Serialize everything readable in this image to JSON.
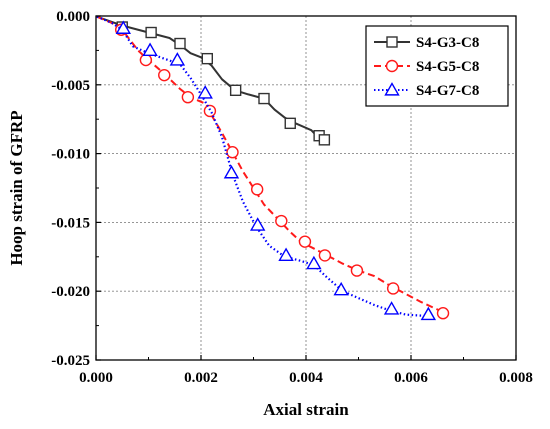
{
  "chart_data": {
    "type": "line",
    "title": "",
    "xlabel": "Axial strain",
    "ylabel": "Hoop strain of GFRP",
    "xlim": [
      0.0,
      0.008
    ],
    "ylim": [
      -0.025,
      0.0
    ],
    "x_ticks": [
      "0.000",
      "0.002",
      "0.004",
      "0.006",
      "0.008"
    ],
    "y_ticks": [
      "0.000",
      "-0.005",
      "-0.010",
      "-0.015",
      "-0.020",
      "-0.025"
    ],
    "grid": true,
    "legend_position": "top-right",
    "series": [
      {
        "name": "S4-G3-C8",
        "color": "#333333",
        "line_style": "solid",
        "marker": "square",
        "line": [
          [
            2e-05,
            -5e-05
          ],
          [
            0.0002,
            -0.0003
          ],
          [
            0.0005,
            -0.0007
          ],
          [
            0.001,
            -0.0012
          ],
          [
            0.0014,
            -0.0016
          ],
          [
            0.0016,
            -0.0021
          ],
          [
            0.0018,
            -0.0027
          ],
          [
            0.002,
            -0.003
          ],
          [
            0.0022,
            -0.0036
          ],
          [
            0.0024,
            -0.0046
          ],
          [
            0.00265,
            -0.0054
          ],
          [
            0.0029,
            -0.0057
          ],
          [
            0.0032,
            -0.006
          ],
          [
            0.0034,
            -0.0068
          ],
          [
            0.0036,
            -0.0074
          ],
          [
            0.0038,
            -0.0078
          ],
          [
            0.0041,
            -0.0083
          ],
          [
            0.0042,
            -0.0087
          ],
          [
            0.00435,
            -0.009
          ]
        ],
        "points": [
          [
            0.0005,
            -0.0008
          ],
          [
            0.00105,
            -0.0012
          ],
          [
            0.0016,
            -0.002
          ],
          [
            0.00212,
            -0.0031
          ],
          [
            0.00266,
            -0.0054
          ],
          [
            0.0032,
            -0.006
          ],
          [
            0.0037,
            -0.0078
          ],
          [
            0.00425,
            -0.0087
          ],
          [
            0.00435,
            -0.009
          ]
        ]
      },
      {
        "name": "S4-G5-C8",
        "color": "#ff1a1a",
        "line_style": "dashed",
        "marker": "circle",
        "line": [
          [
            2e-05,
            -5e-05
          ],
          [
            0.0003,
            -0.0005
          ],
          [
            0.0005,
            -0.001
          ],
          [
            0.0008,
            -0.0025
          ],
          [
            0.001,
            -0.0032
          ],
          [
            0.0013,
            -0.0042
          ],
          [
            0.0016,
            -0.0053
          ],
          [
            0.0018,
            -0.0059
          ],
          [
            0.0021,
            -0.0064
          ],
          [
            0.0022,
            -0.0072
          ],
          [
            0.0024,
            -0.0085
          ],
          [
            0.0026,
            -0.0099
          ],
          [
            0.0028,
            -0.0113
          ],
          [
            0.003,
            -0.0125
          ],
          [
            0.0032,
            -0.0137
          ],
          [
            0.0035,
            -0.0149
          ],
          [
            0.0037,
            -0.0157
          ],
          [
            0.0039,
            -0.0164
          ],
          [
            0.0042,
            -0.017
          ],
          [
            0.0044,
            -0.0174
          ],
          [
            0.0047,
            -0.018
          ],
          [
            0.005,
            -0.0185
          ],
          [
            0.0053,
            -0.0189
          ],
          [
            0.0056,
            -0.0196
          ],
          [
            0.0059,
            -0.0202
          ],
          [
            0.0062,
            -0.0208
          ],
          [
            0.0066,
            -0.0215
          ]
        ],
        "points": [
          [
            0.00048,
            -0.001
          ],
          [
            0.00095,
            -0.0032
          ],
          [
            0.0013,
            -0.0043
          ],
          [
            0.00175,
            -0.0059
          ],
          [
            0.00217,
            -0.0069
          ],
          [
            0.0026,
            -0.0099
          ],
          [
            0.00307,
            -0.0126
          ],
          [
            0.00353,
            -0.0149
          ],
          [
            0.00398,
            -0.0164
          ],
          [
            0.00436,
            -0.0174
          ],
          [
            0.00497,
            -0.0185
          ],
          [
            0.00566,
            -0.0198
          ],
          [
            0.00661,
            -0.0216
          ]
        ]
      },
      {
        "name": "S4-G7-C8",
        "color": "#0000ff",
        "line_style": "dotted",
        "marker": "triangle",
        "line": [
          [
            2e-05,
            -5e-05
          ],
          [
            0.0003,
            -0.0005
          ],
          [
            0.0005,
            -0.001
          ],
          [
            0.0007,
            -0.0022
          ],
          [
            0.001,
            -0.0027
          ],
          [
            0.0013,
            -0.0031
          ],
          [
            0.0016,
            -0.0035
          ],
          [
            0.0018,
            -0.0045
          ],
          [
            0.002,
            -0.0057
          ],
          [
            0.0022,
            -0.007
          ],
          [
            0.0024,
            -0.0088
          ],
          [
            0.0026,
            -0.0115
          ],
          [
            0.0028,
            -0.0135
          ],
          [
            0.00305,
            -0.0153
          ],
          [
            0.0033,
            -0.0167
          ],
          [
            0.0036,
            -0.0175
          ],
          [
            0.0039,
            -0.0178
          ],
          [
            0.00415,
            -0.0181
          ],
          [
            0.0044,
            -0.019
          ],
          [
            0.0047,
            -0.02
          ],
          [
            0.005,
            -0.0205
          ],
          [
            0.0053,
            -0.021
          ],
          [
            0.0056,
            -0.0214
          ],
          [
            0.0059,
            -0.0217
          ],
          [
            0.0063,
            -0.0218
          ]
        ],
        "points": [
          [
            0.00052,
            -0.0009
          ],
          [
            0.00103,
            -0.0025
          ],
          [
            0.00155,
            -0.0032
          ],
          [
            0.00208,
            -0.0056
          ],
          [
            0.00258,
            -0.0114
          ],
          [
            0.00308,
            -0.0152
          ],
          [
            0.00362,
            -0.0174
          ],
          [
            0.00415,
            -0.018
          ],
          [
            0.00467,
            -0.0199
          ],
          [
            0.00563,
            -0.0213
          ],
          [
            0.00633,
            -0.0217
          ]
        ]
      }
    ]
  }
}
